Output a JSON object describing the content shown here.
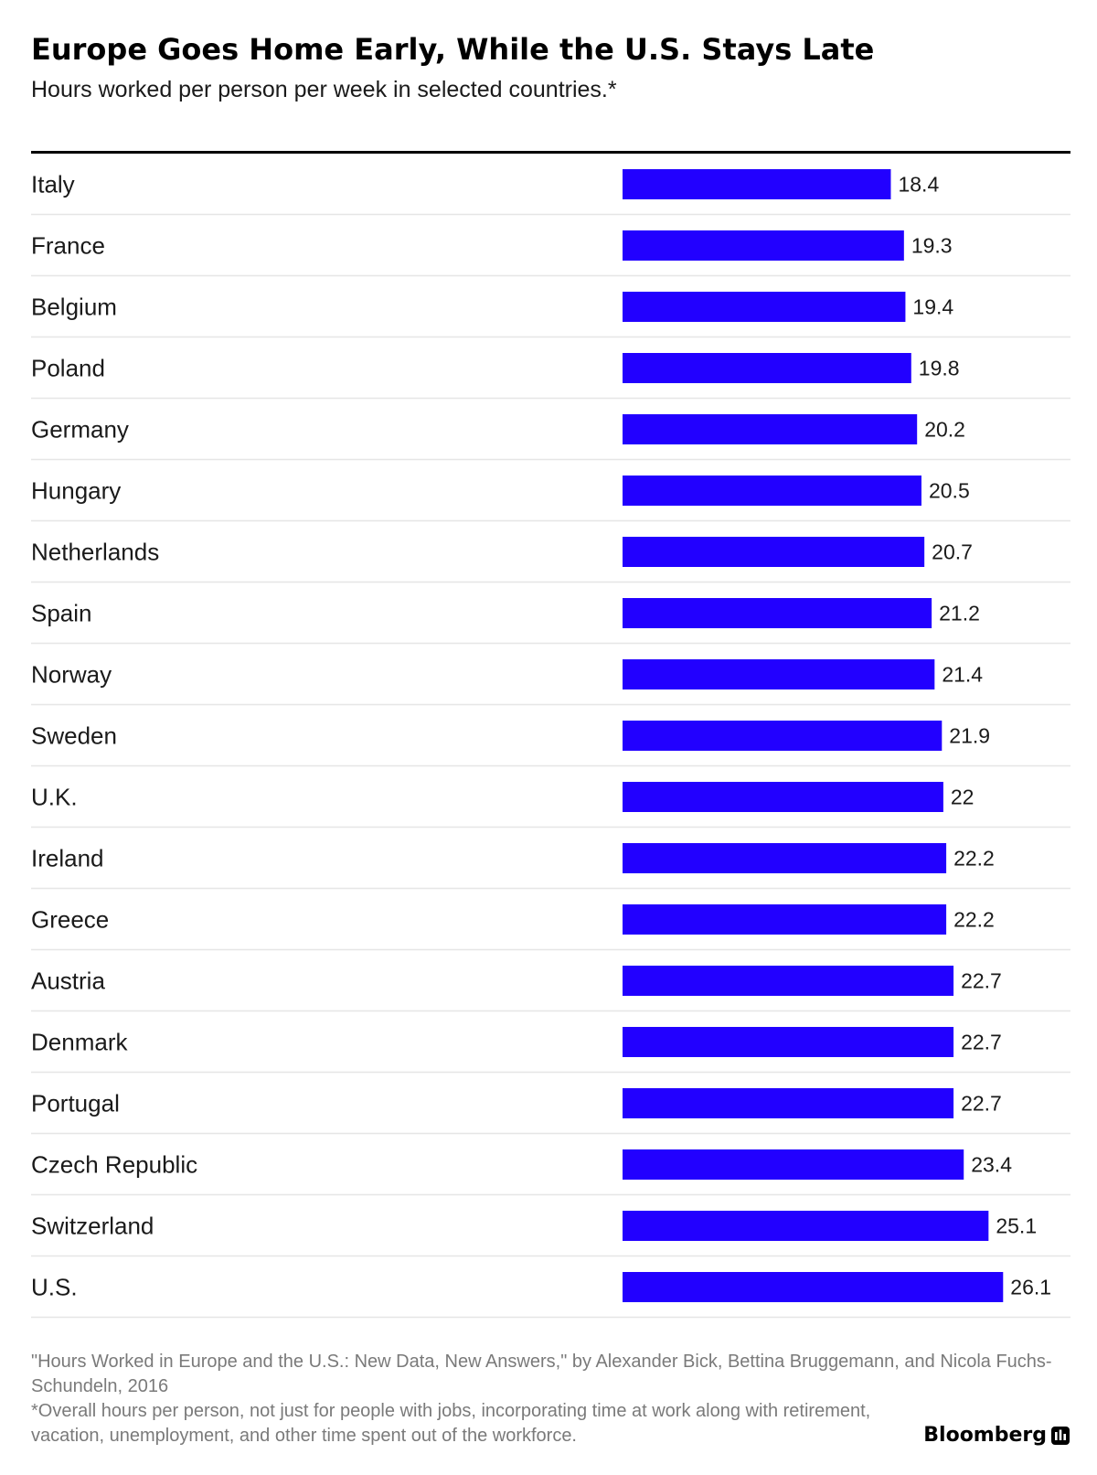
{
  "header": {
    "title": "Europe Goes Home Early, While the U.S. Stays Late",
    "subtitle": "Hours worked per person per week in selected countries.*"
  },
  "chart_data": {
    "type": "bar",
    "orientation": "horizontal",
    "title": "Europe Goes Home Early, While the U.S. Stays Late",
    "subtitle": "Hours worked per person per week in selected countries.*",
    "xlabel": "",
    "ylabel": "",
    "xlim": [
      0,
      26.1
    ],
    "grid": false,
    "legend": "none",
    "bar_color": "#2200ff",
    "categories": [
      "Italy",
      "France",
      "Belgium",
      "Poland",
      "Germany",
      "Hungary",
      "Netherlands",
      "Spain",
      "Norway",
      "Sweden",
      "U.K.",
      "Ireland",
      "Greece",
      "Austria",
      "Denmark",
      "Portugal",
      "Czech Republic",
      "Switzerland",
      "U.S."
    ],
    "values": [
      18.4,
      19.3,
      19.4,
      19.8,
      20.2,
      20.5,
      20.7,
      21.2,
      21.4,
      21.9,
      22,
      22.2,
      22.2,
      22.7,
      22.7,
      22.7,
      23.4,
      25.1,
      26.1
    ],
    "value_labels": [
      "18.4",
      "19.3",
      "19.4",
      "19.8",
      "20.2",
      "20.5",
      "20.7",
      "21.2",
      "21.4",
      "21.9",
      "22",
      "22.2",
      "22.2",
      "22.7",
      "22.7",
      "22.7",
      "23.4",
      "25.1",
      "26.1"
    ]
  },
  "footer": {
    "source": "\"Hours Worked in Europe and the U.S.: New Data, New Answers,\" by Alexander Bick, Bettina Bruggemann, and Nicola Fuchs-Schundeln, 2016",
    "note": "*Overall hours per person, not just for people with jobs, incorporating time at work along with retirement, vacation, unemployment, and other time spent out of the workforce.",
    "brand": "Bloomberg",
    "brand_icon": "bar-chart-icon"
  },
  "colors": {
    "bar": "#2200ff",
    "text": "#1a1a1a",
    "footer_text": "#7a7a7a",
    "rule": "#000000",
    "row_divider": "#e6e6e6"
  }
}
